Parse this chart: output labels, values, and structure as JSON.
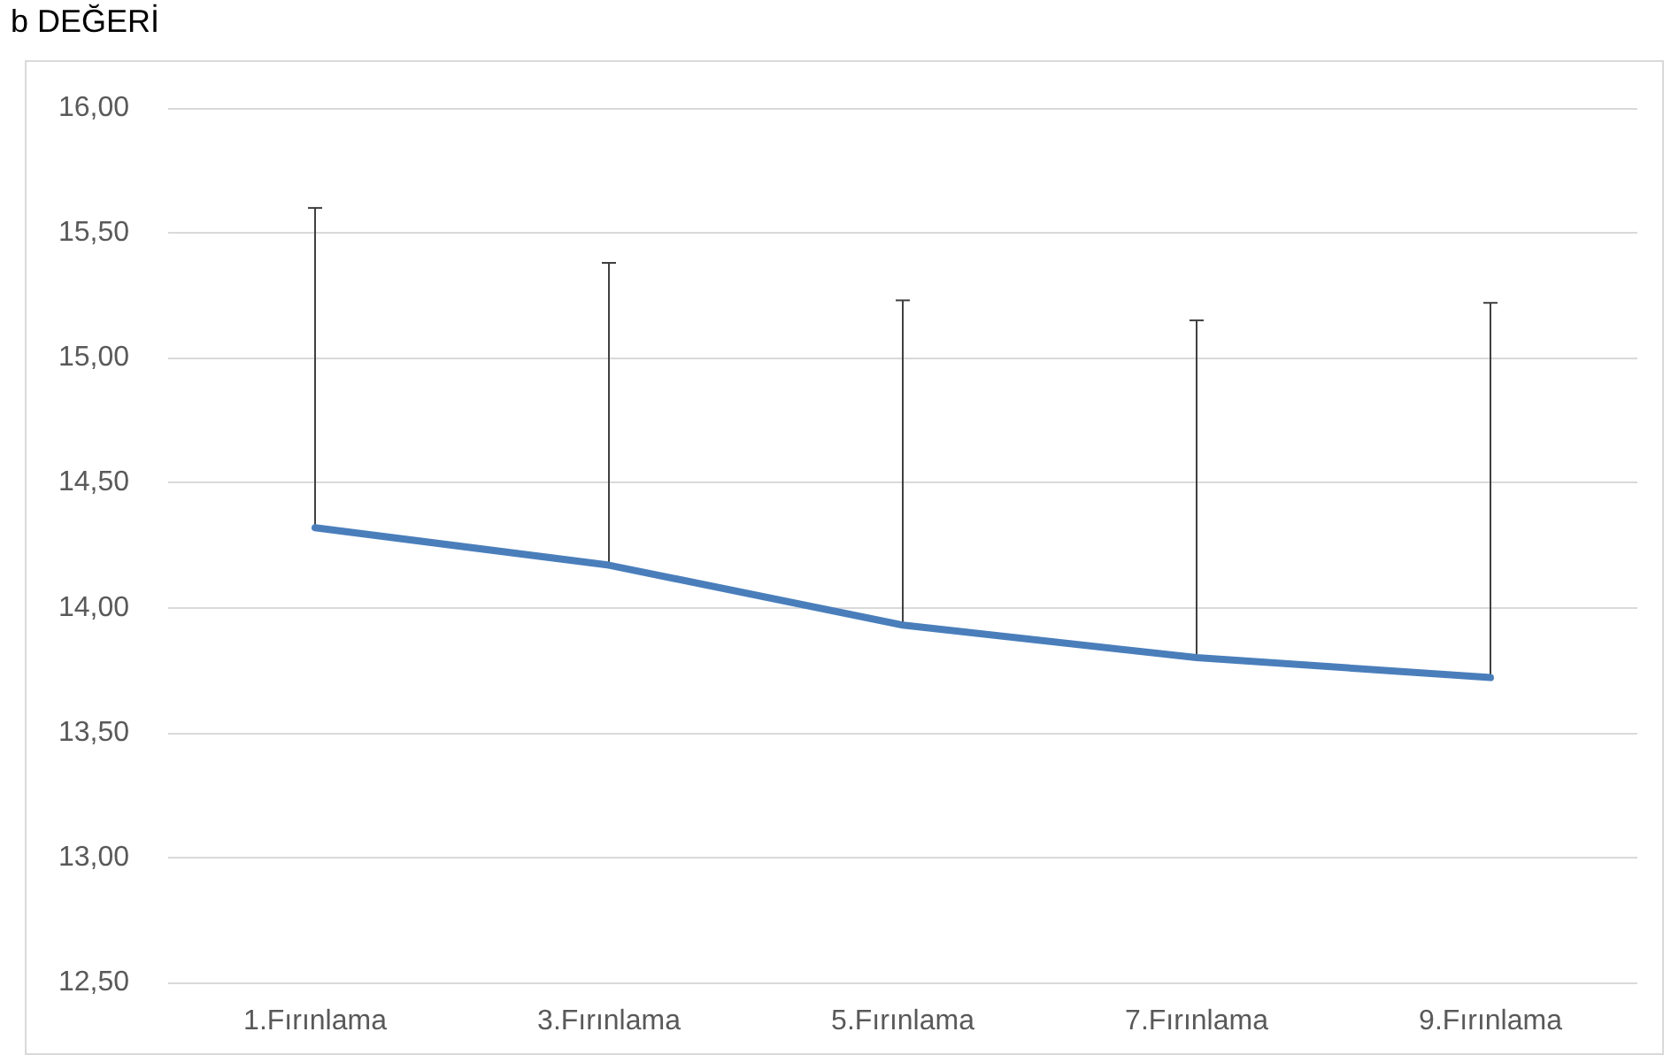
{
  "chart_data": {
    "type": "line",
    "title": "b DEĞERİ",
    "categories": [
      "1.Fırınlama",
      "3.Fırınlama",
      "5.Fırınlama",
      "7.Fırınlama",
      "9.Fırınlama"
    ],
    "series": [
      {
        "color": "#4a7ebb",
        "values": [
          14.32,
          14.17,
          13.93,
          13.8,
          13.72
        ],
        "errors": [
          [
            14.32,
            15.6
          ],
          [
            14.17,
            15.38
          ],
          [
            13.93,
            15.23
          ],
          [
            13.8,
            15.15
          ],
          [
            13.72,
            15.22
          ]
        ]
      }
    ],
    "ylim": [
      12.5,
      16
    ],
    "yticks": [
      {
        "value": 12.5,
        "label": "12,50"
      },
      {
        "value": 13,
        "label": "13,00"
      },
      {
        "value": 13.5,
        "label": "13,50"
      },
      {
        "value": 14,
        "label": "14,00"
      },
      {
        "value": 14.5,
        "label": "14,50"
      },
      {
        "value": 15,
        "label": "15,00"
      },
      {
        "value": 15.5,
        "label": "15,50"
      },
      {
        "value": 16,
        "label": "16,00"
      }
    ],
    "grid": "y",
    "marker": "none",
    "line_style": "solid"
  }
}
